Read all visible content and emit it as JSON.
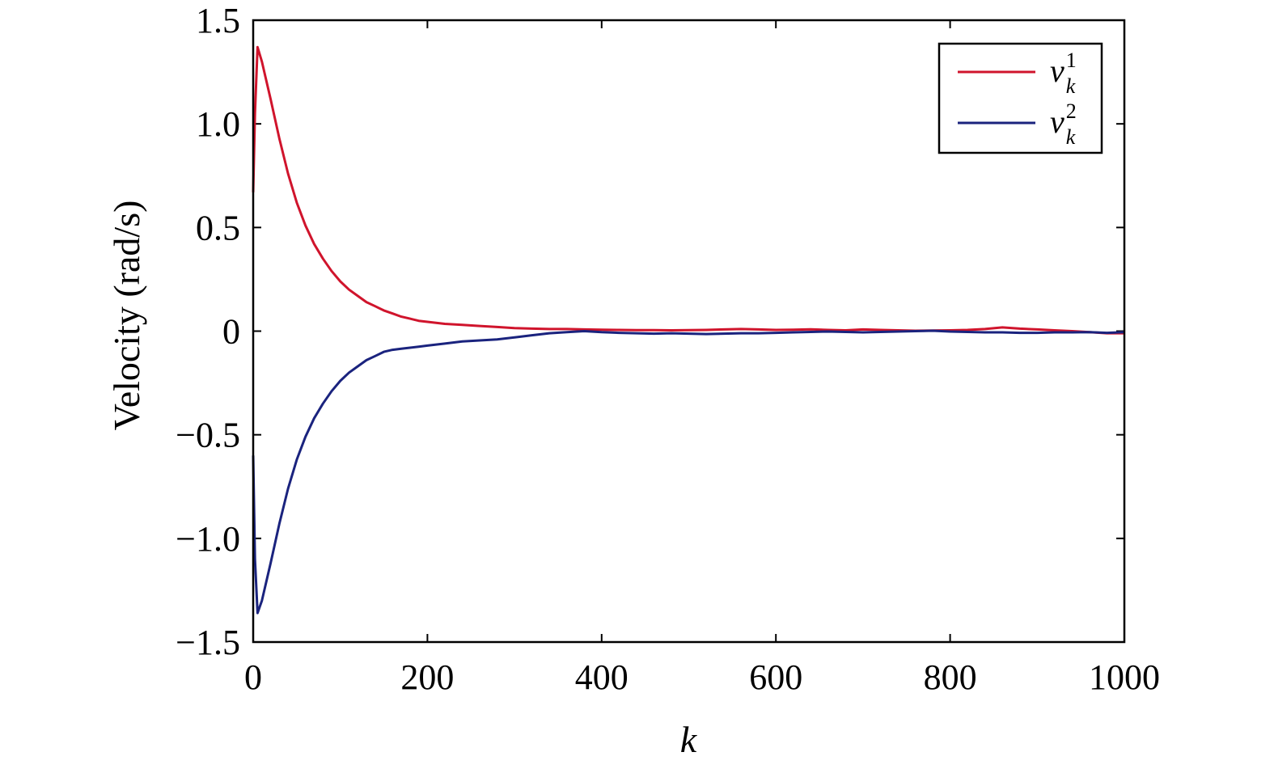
{
  "chart_data": {
    "type": "line",
    "xlabel": "k",
    "ylabel": "Velocity (rad/s)",
    "xlim": [
      0,
      1000
    ],
    "ylim": [
      -1.5,
      1.5
    ],
    "xticks": [
      0,
      200,
      400,
      600,
      800,
      1000
    ],
    "xtick_labels": [
      "0",
      "200",
      "400",
      "600",
      "800",
      "1000"
    ],
    "yticks": [
      -1.5,
      -1.0,
      -0.5,
      0,
      0.5,
      1.0,
      1.5
    ],
    "ytick_labels": [
      "−1.5",
      "−1.0",
      "−0.5",
      "0",
      "0.5",
      "1.0",
      "1.5"
    ],
    "grid": false,
    "legend_position": "top-right",
    "series": [
      {
        "name": "v_k^1",
        "legend_base": "v",
        "legend_sub": "k",
        "legend_sup": "1",
        "color": "#d0142c",
        "x": [
          0,
          2,
          5,
          10,
          20,
          30,
          40,
          50,
          60,
          70,
          80,
          90,
          100,
          110,
          120,
          130,
          140,
          150,
          160,
          170,
          180,
          190,
          200,
          220,
          240,
          260,
          280,
          300,
          320,
          340,
          360,
          380,
          400,
          420,
          440,
          460,
          480,
          500,
          520,
          540,
          560,
          580,
          600,
          620,
          640,
          660,
          680,
          700,
          720,
          740,
          760,
          780,
          800,
          820,
          840,
          860,
          880,
          900,
          920,
          940,
          960,
          980,
          1000
        ],
        "y": [
          0.67,
          1.05,
          1.37,
          1.3,
          1.12,
          0.93,
          0.76,
          0.62,
          0.51,
          0.42,
          0.35,
          0.29,
          0.24,
          0.2,
          0.17,
          0.14,
          0.12,
          0.1,
          0.085,
          0.07,
          0.06,
          0.05,
          0.045,
          0.035,
          0.03,
          0.025,
          0.02,
          0.015,
          0.012,
          0.01,
          0.01,
          0.008,
          0.007,
          0.006,
          0.005,
          0.005,
          0.004,
          0.005,
          0.006,
          0.008,
          0.01,
          0.008,
          0.006,
          0.007,
          0.009,
          0.006,
          0.004,
          0.008,
          0.006,
          0.004,
          0.002,
          0.003,
          0.004,
          0.006,
          0.01,
          0.018,
          0.012,
          0.008,
          0.004,
          0.0,
          -0.005,
          -0.01,
          -0.01
        ]
      },
      {
        "name": "v_k^2",
        "legend_base": "v",
        "legend_sub": "k",
        "legend_sup": "2",
        "color": "#1a237e",
        "x": [
          0,
          2,
          5,
          10,
          20,
          30,
          40,
          50,
          60,
          70,
          80,
          90,
          100,
          110,
          120,
          130,
          140,
          150,
          160,
          170,
          180,
          190,
          200,
          220,
          240,
          260,
          280,
          300,
          320,
          340,
          360,
          380,
          400,
          420,
          440,
          460,
          480,
          500,
          520,
          540,
          560,
          580,
          600,
          620,
          640,
          660,
          680,
          700,
          720,
          740,
          760,
          780,
          800,
          820,
          840,
          860,
          880,
          900,
          920,
          940,
          960,
          980,
          1000
        ],
        "y": [
          -0.6,
          -1.1,
          -1.36,
          -1.3,
          -1.12,
          -0.93,
          -0.76,
          -0.62,
          -0.51,
          -0.42,
          -0.35,
          -0.29,
          -0.24,
          -0.2,
          -0.17,
          -0.14,
          -0.12,
          -0.1,
          -0.09,
          -0.085,
          -0.08,
          -0.075,
          -0.07,
          -0.06,
          -0.05,
          -0.045,
          -0.04,
          -0.03,
          -0.02,
          -0.01,
          -0.005,
          0.0,
          -0.005,
          -0.008,
          -0.01,
          -0.012,
          -0.01,
          -0.012,
          -0.014,
          -0.012,
          -0.01,
          -0.01,
          -0.008,
          -0.006,
          -0.004,
          -0.002,
          -0.004,
          -0.006,
          -0.004,
          -0.002,
          0.0,
          0.002,
          -0.002,
          -0.004,
          -0.006,
          -0.006,
          -0.008,
          -0.008,
          -0.006,
          -0.006,
          -0.005,
          -0.008,
          -0.005
        ]
      }
    ]
  }
}
